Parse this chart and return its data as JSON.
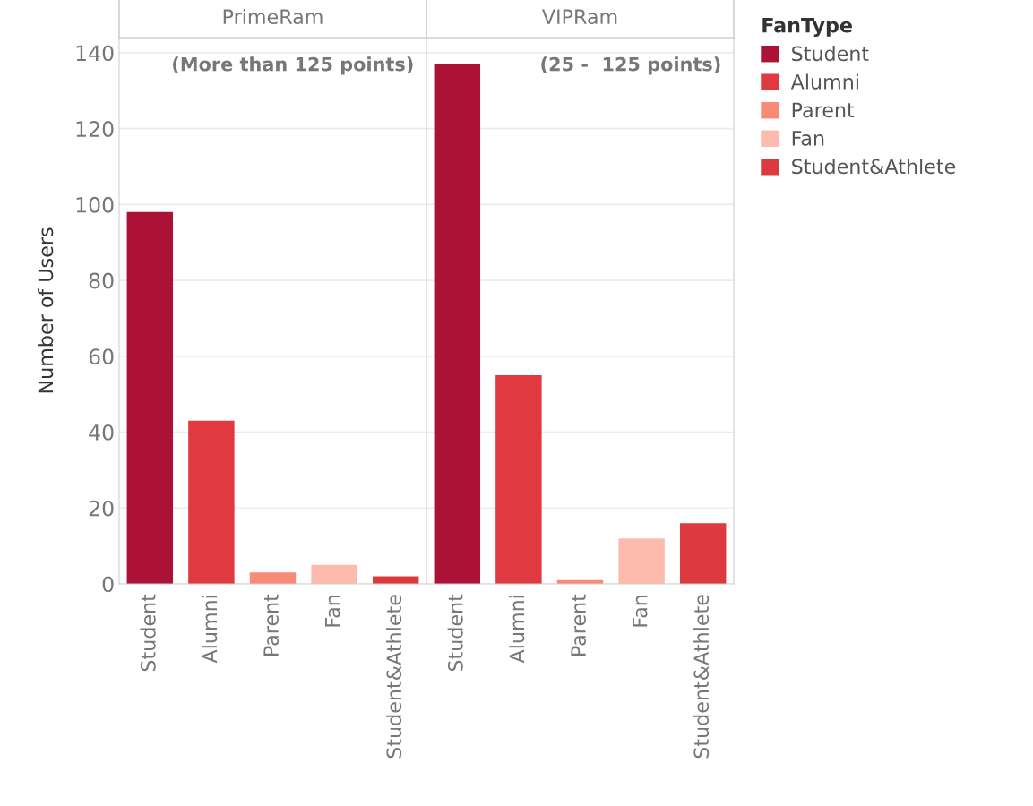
{
  "chart_data": [
    {
      "type": "bar",
      "title": "PrimeRam",
      "ylabel": "Number of Users",
      "categories": [
        "Student",
        "Alumni",
        "Parent",
        "Fan",
        "Student&Athlete"
      ],
      "series": [
        {
          "color": "#ab1236",
          "values": [
            98,
            null,
            null,
            null,
            null
          ]
        },
        {
          "color": "#e0393f",
          "values": [
            null,
            43,
            null,
            null,
            null
          ]
        },
        {
          "color": "#f88a78",
          "values": [
            null,
            null,
            3,
            null,
            null
          ]
        },
        {
          "color": "#fdbbae",
          "values": [
            null,
            null,
            null,
            5,
            null
          ]
        },
        {
          "color": "#dd3a3f",
          "values": [
            null,
            null,
            null,
            null,
            2
          ]
        }
      ],
      "ylim": [
        0,
        144
      ],
      "yticks": [
        0,
        20,
        40,
        60,
        80,
        100,
        120,
        140
      ],
      "grid": "y",
      "annotations": [
        "(More than 125 points)"
      ]
    },
    {
      "type": "bar",
      "title": "VIPRam",
      "categories": [
        "Student",
        "Alumni",
        "Parent",
        "Fan",
        "Student&Athlete"
      ],
      "series": [
        {
          "name": "Student",
          "color": "#ab1236",
          "values": [
            137,
            null,
            null,
            null,
            null
          ]
        },
        {
          "name": "Alumni",
          "color": "#e0393f",
          "values": [
            null,
            55,
            null,
            null,
            null
          ]
        },
        {
          "name": "Parent",
          "color": "#f88a78",
          "values": [
            null,
            null,
            1,
            null,
            null
          ]
        },
        {
          "name": "Fan",
          "color": "#fdbbae",
          "values": [
            null,
            null,
            null,
            12,
            null
          ]
        },
        {
          "name": "Student&Athlete",
          "color": "#dd3a3f",
          "values": [
            null,
            null,
            null,
            null,
            16
          ]
        }
      ],
      "ylim": [
        0,
        144
      ],
      "yticks": [
        0,
        20,
        40,
        60,
        80,
        100,
        120,
        140
      ],
      "grid": "y",
      "tick_labels": "x",
      "legend": "right",
      "legend_title": "FanType",
      "annotations": [
        "(25 -  125 points)"
      ]
    }
  ]
}
